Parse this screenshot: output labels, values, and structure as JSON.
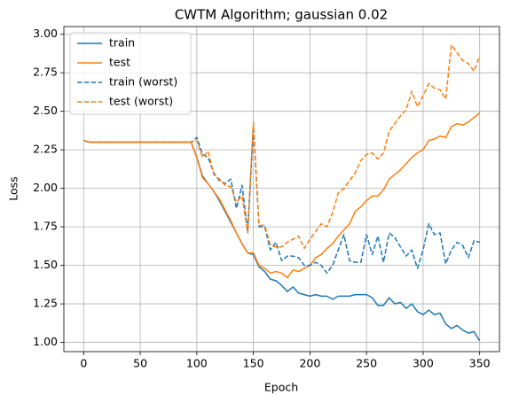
{
  "chart_data": {
    "type": "line",
    "title": "CWTM Algorithm; gaussian 0.02",
    "xlabel": "Epoch",
    "ylabel": "Loss",
    "x": [
      0,
      5,
      10,
      15,
      20,
      25,
      30,
      35,
      40,
      45,
      50,
      55,
      60,
      65,
      70,
      75,
      80,
      85,
      90,
      95,
      100,
      105,
      110,
      115,
      120,
      125,
      130,
      135,
      140,
      145,
      150,
      155,
      160,
      165,
      170,
      175,
      180,
      185,
      190,
      195,
      200,
      205,
      210,
      215,
      220,
      225,
      230,
      235,
      240,
      245,
      250,
      255,
      260,
      265,
      270,
      275,
      280,
      285,
      290,
      295,
      300,
      305,
      310,
      315,
      320,
      325,
      330,
      335,
      340,
      345,
      350
    ],
    "series": [
      {
        "name": "train",
        "color": "#1f77b4",
        "linestyle": "solid",
        "values": [
          2.31,
          2.3,
          2.3,
          2.3,
          2.3,
          2.3,
          2.3,
          2.3,
          2.3,
          2.3,
          2.3,
          2.3,
          2.3,
          2.3,
          2.3,
          2.3,
          2.3,
          2.3,
          2.3,
          2.3,
          2.2,
          2.08,
          2.03,
          1.98,
          1.92,
          1.85,
          1.78,
          1.71,
          1.64,
          1.58,
          1.57,
          1.49,
          1.46,
          1.41,
          1.4,
          1.37,
          1.33,
          1.36,
          1.32,
          1.31,
          1.3,
          1.31,
          1.3,
          1.3,
          1.28,
          1.3,
          1.3,
          1.3,
          1.31,
          1.31,
          1.31,
          1.29,
          1.24,
          1.24,
          1.29,
          1.25,
          1.26,
          1.22,
          1.25,
          1.2,
          1.18,
          1.21,
          1.18,
          1.19,
          1.12,
          1.09,
          1.11,
          1.08,
          1.06,
          1.07,
          1.01
        ]
      },
      {
        "name": "test",
        "color": "#ff7f0e",
        "linestyle": "solid",
        "values": [
          2.31,
          2.3,
          2.3,
          2.3,
          2.3,
          2.3,
          2.3,
          2.3,
          2.3,
          2.3,
          2.3,
          2.3,
          2.3,
          2.3,
          2.3,
          2.3,
          2.3,
          2.3,
          2.3,
          2.3,
          2.2,
          2.07,
          2.03,
          1.98,
          1.93,
          1.86,
          1.79,
          1.71,
          1.64,
          1.58,
          1.58,
          1.5,
          1.48,
          1.45,
          1.46,
          1.45,
          1.42,
          1.47,
          1.46,
          1.48,
          1.5,
          1.55,
          1.57,
          1.61,
          1.64,
          1.69,
          1.73,
          1.77,
          1.85,
          1.88,
          1.92,
          1.95,
          1.95,
          1.99,
          2.06,
          2.09,
          2.12,
          2.16,
          2.2,
          2.23,
          2.25,
          2.31,
          2.32,
          2.34,
          2.33,
          2.4,
          2.42,
          2.41,
          2.43,
          2.46,
          2.49
        ]
      },
      {
        "name": "train (worst)",
        "color": "#1f77b4",
        "linestyle": "dashed",
        "values": [
          2.31,
          2.3,
          2.3,
          2.3,
          2.3,
          2.3,
          2.3,
          2.3,
          2.3,
          2.3,
          2.3,
          2.3,
          2.3,
          2.3,
          2.3,
          2.3,
          2.3,
          2.3,
          2.3,
          2.3,
          2.33,
          2.22,
          2.2,
          2.1,
          2.05,
          2.03,
          2.06,
          1.87,
          2.02,
          1.72,
          2.4,
          1.75,
          1.75,
          1.6,
          1.65,
          1.53,
          1.56,
          1.56,
          1.55,
          1.5,
          1.5,
          1.52,
          1.5,
          1.45,
          1.5,
          1.6,
          1.7,
          1.53,
          1.52,
          1.52,
          1.7,
          1.57,
          1.69,
          1.52,
          1.71,
          1.68,
          1.62,
          1.56,
          1.6,
          1.48,
          1.6,
          1.77,
          1.7,
          1.71,
          1.51,
          1.6,
          1.65,
          1.63,
          1.55,
          1.66,
          1.65
        ]
      },
      {
        "name": "test (worst)",
        "color": "#ff7f0e",
        "linestyle": "dashed",
        "values": [
          2.31,
          2.3,
          2.3,
          2.3,
          2.3,
          2.3,
          2.3,
          2.3,
          2.3,
          2.3,
          2.3,
          2.3,
          2.3,
          2.3,
          2.3,
          2.3,
          2.3,
          2.3,
          2.3,
          2.3,
          2.31,
          2.2,
          2.24,
          2.09,
          2.06,
          2.02,
          2.01,
          1.91,
          1.95,
          1.71,
          2.43,
          1.76,
          1.76,
          1.63,
          1.62,
          1.62,
          1.65,
          1.67,
          1.69,
          1.61,
          1.67,
          1.72,
          1.77,
          1.75,
          1.84,
          1.97,
          2.0,
          2.05,
          2.1,
          2.18,
          2.22,
          2.23,
          2.19,
          2.23,
          2.37,
          2.42,
          2.47,
          2.51,
          2.63,
          2.53,
          2.6,
          2.68,
          2.65,
          2.64,
          2.58,
          2.93,
          2.88,
          2.83,
          2.81,
          2.76,
          2.86
        ]
      }
    ],
    "xlim": [
      -17.5,
      367.5
    ],
    "xticks": [
      0,
      50,
      100,
      150,
      200,
      250,
      300,
      350
    ],
    "ylim": [
      0.94,
      3.05
    ],
    "yticks": [
      {
        "value": 1,
        "label": "1.00"
      },
      {
        "value": 1.25,
        "label": "1.25"
      },
      {
        "value": 1.5,
        "label": "1.50"
      },
      {
        "value": 1.75,
        "label": "1.75"
      },
      {
        "value": 2,
        "label": "2.00"
      },
      {
        "value": 2.25,
        "label": "2.25"
      },
      {
        "value": 2.5,
        "label": "2.50"
      },
      {
        "value": 2.75,
        "label": "2.75"
      },
      {
        "value": 3,
        "label": "3.00"
      }
    ],
    "grid": true,
    "legend": "upper left"
  }
}
